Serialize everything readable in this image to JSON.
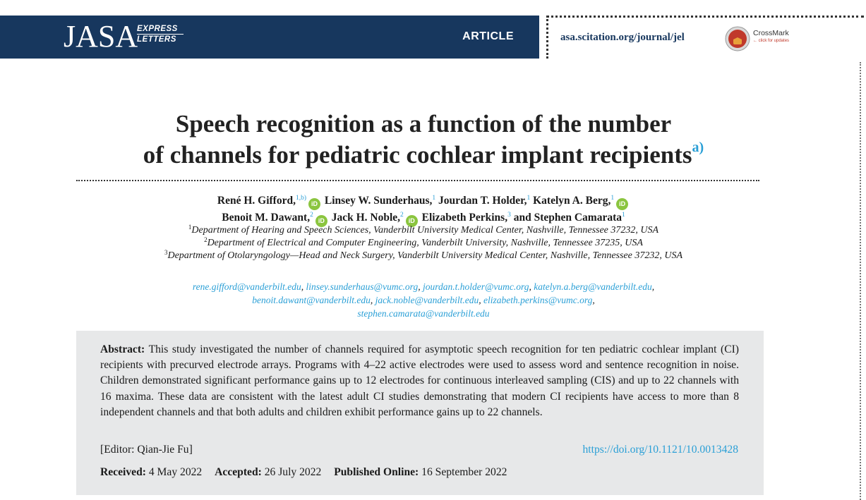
{
  "header": {
    "logo_main": "JASA",
    "logo_sub_line1": "EXPRESS",
    "logo_sub_line2": "LETTERS",
    "article_label": "ARTICLE",
    "journal_url": "asa.scitation.org/journal/jel",
    "crossmark_label": "CrossMark",
    "crossmark_sub": "click for updates",
    "bar_color": "#17375e"
  },
  "title": {
    "line1": "Speech recognition as a function of the number",
    "line2": "of channels for pediatric cochlear implant recipients",
    "footnote_marker": "a)"
  },
  "authors": [
    {
      "name": "René H. Gifford,",
      "sup": "1,b)",
      "orcid": true
    },
    {
      "name": "Linsey W. Sunderhaus,",
      "sup": "1",
      "orcid": false
    },
    {
      "name": "Jourdan T. Holder,",
      "sup": "1",
      "orcid": false
    },
    {
      "name": "Katelyn A. Berg,",
      "sup": "1",
      "orcid": true
    },
    {
      "name": "Benoit M. Dawant,",
      "sup": "2",
      "orcid": true
    },
    {
      "name": "Jack H. Noble,",
      "sup": "2",
      "orcid": true
    },
    {
      "name": "Elizabeth Perkins,",
      "sup": "3",
      "orcid": false
    },
    {
      "name": "and Stephen Camarata",
      "sup": "1",
      "orcid": false
    }
  ],
  "orcid_label": "iD",
  "affiliations": [
    {
      "sup": "1",
      "text": "Department of Hearing and Speech Sciences, Vanderbilt University Medical Center, Nashville, Tennessee 37232, USA"
    },
    {
      "sup": "2",
      "text": "Department of Electrical and Computer Engineering, Vanderbilt University, Nashville, Tennessee 37235, USA"
    },
    {
      "sup": "3",
      "text": "Department of Otolaryngology—Head and Neck Surgery, Vanderbilt University Medical Center, Nashville, Tennessee 37232, USA"
    }
  ],
  "emails": [
    "rene.gifford@vanderbilt.edu",
    "linsey.sunderhaus@vumc.org",
    "jourdan.t.holder@vumc.org",
    "katelyn.a.berg@vanderbilt.edu",
    "benoit.dawant@vanderbilt.edu",
    "jack.noble@vanderbilt.edu",
    "elizabeth.perkins@vumc.org",
    "stephen.camarata@vanderbilt.edu"
  ],
  "abstract": {
    "label": "Abstract:",
    "text": "This study investigated the number of channels required for asymptotic speech recognition for ten pediatric cochlear implant (CI) recipients with precurved electrode arrays. Programs with 4–22 active electrodes were used to assess word and sentence recognition in noise. Children demonstrated significant performance gains up to 12 electrodes for continu­ous interleaved sampling (CIS) and up to 22 channels with 16 maxima. These data are consistent with the latest adult CI stud­ies demonstrating that modern CI recipients have access to more than 8 independent channels and that both adults and children exhibit performance gains up to 22 channels."
  },
  "editor": "[Editor: Qian-Jie Fu]",
  "doi": "https://doi.org/10.1121/10.0013428",
  "dates": {
    "received_label": "Received:",
    "received": "4 May 2022",
    "accepted_label": "Accepted:",
    "accepted": "26 July 2022",
    "published_label": "Published Online:",
    "published": "16 September 2022"
  }
}
